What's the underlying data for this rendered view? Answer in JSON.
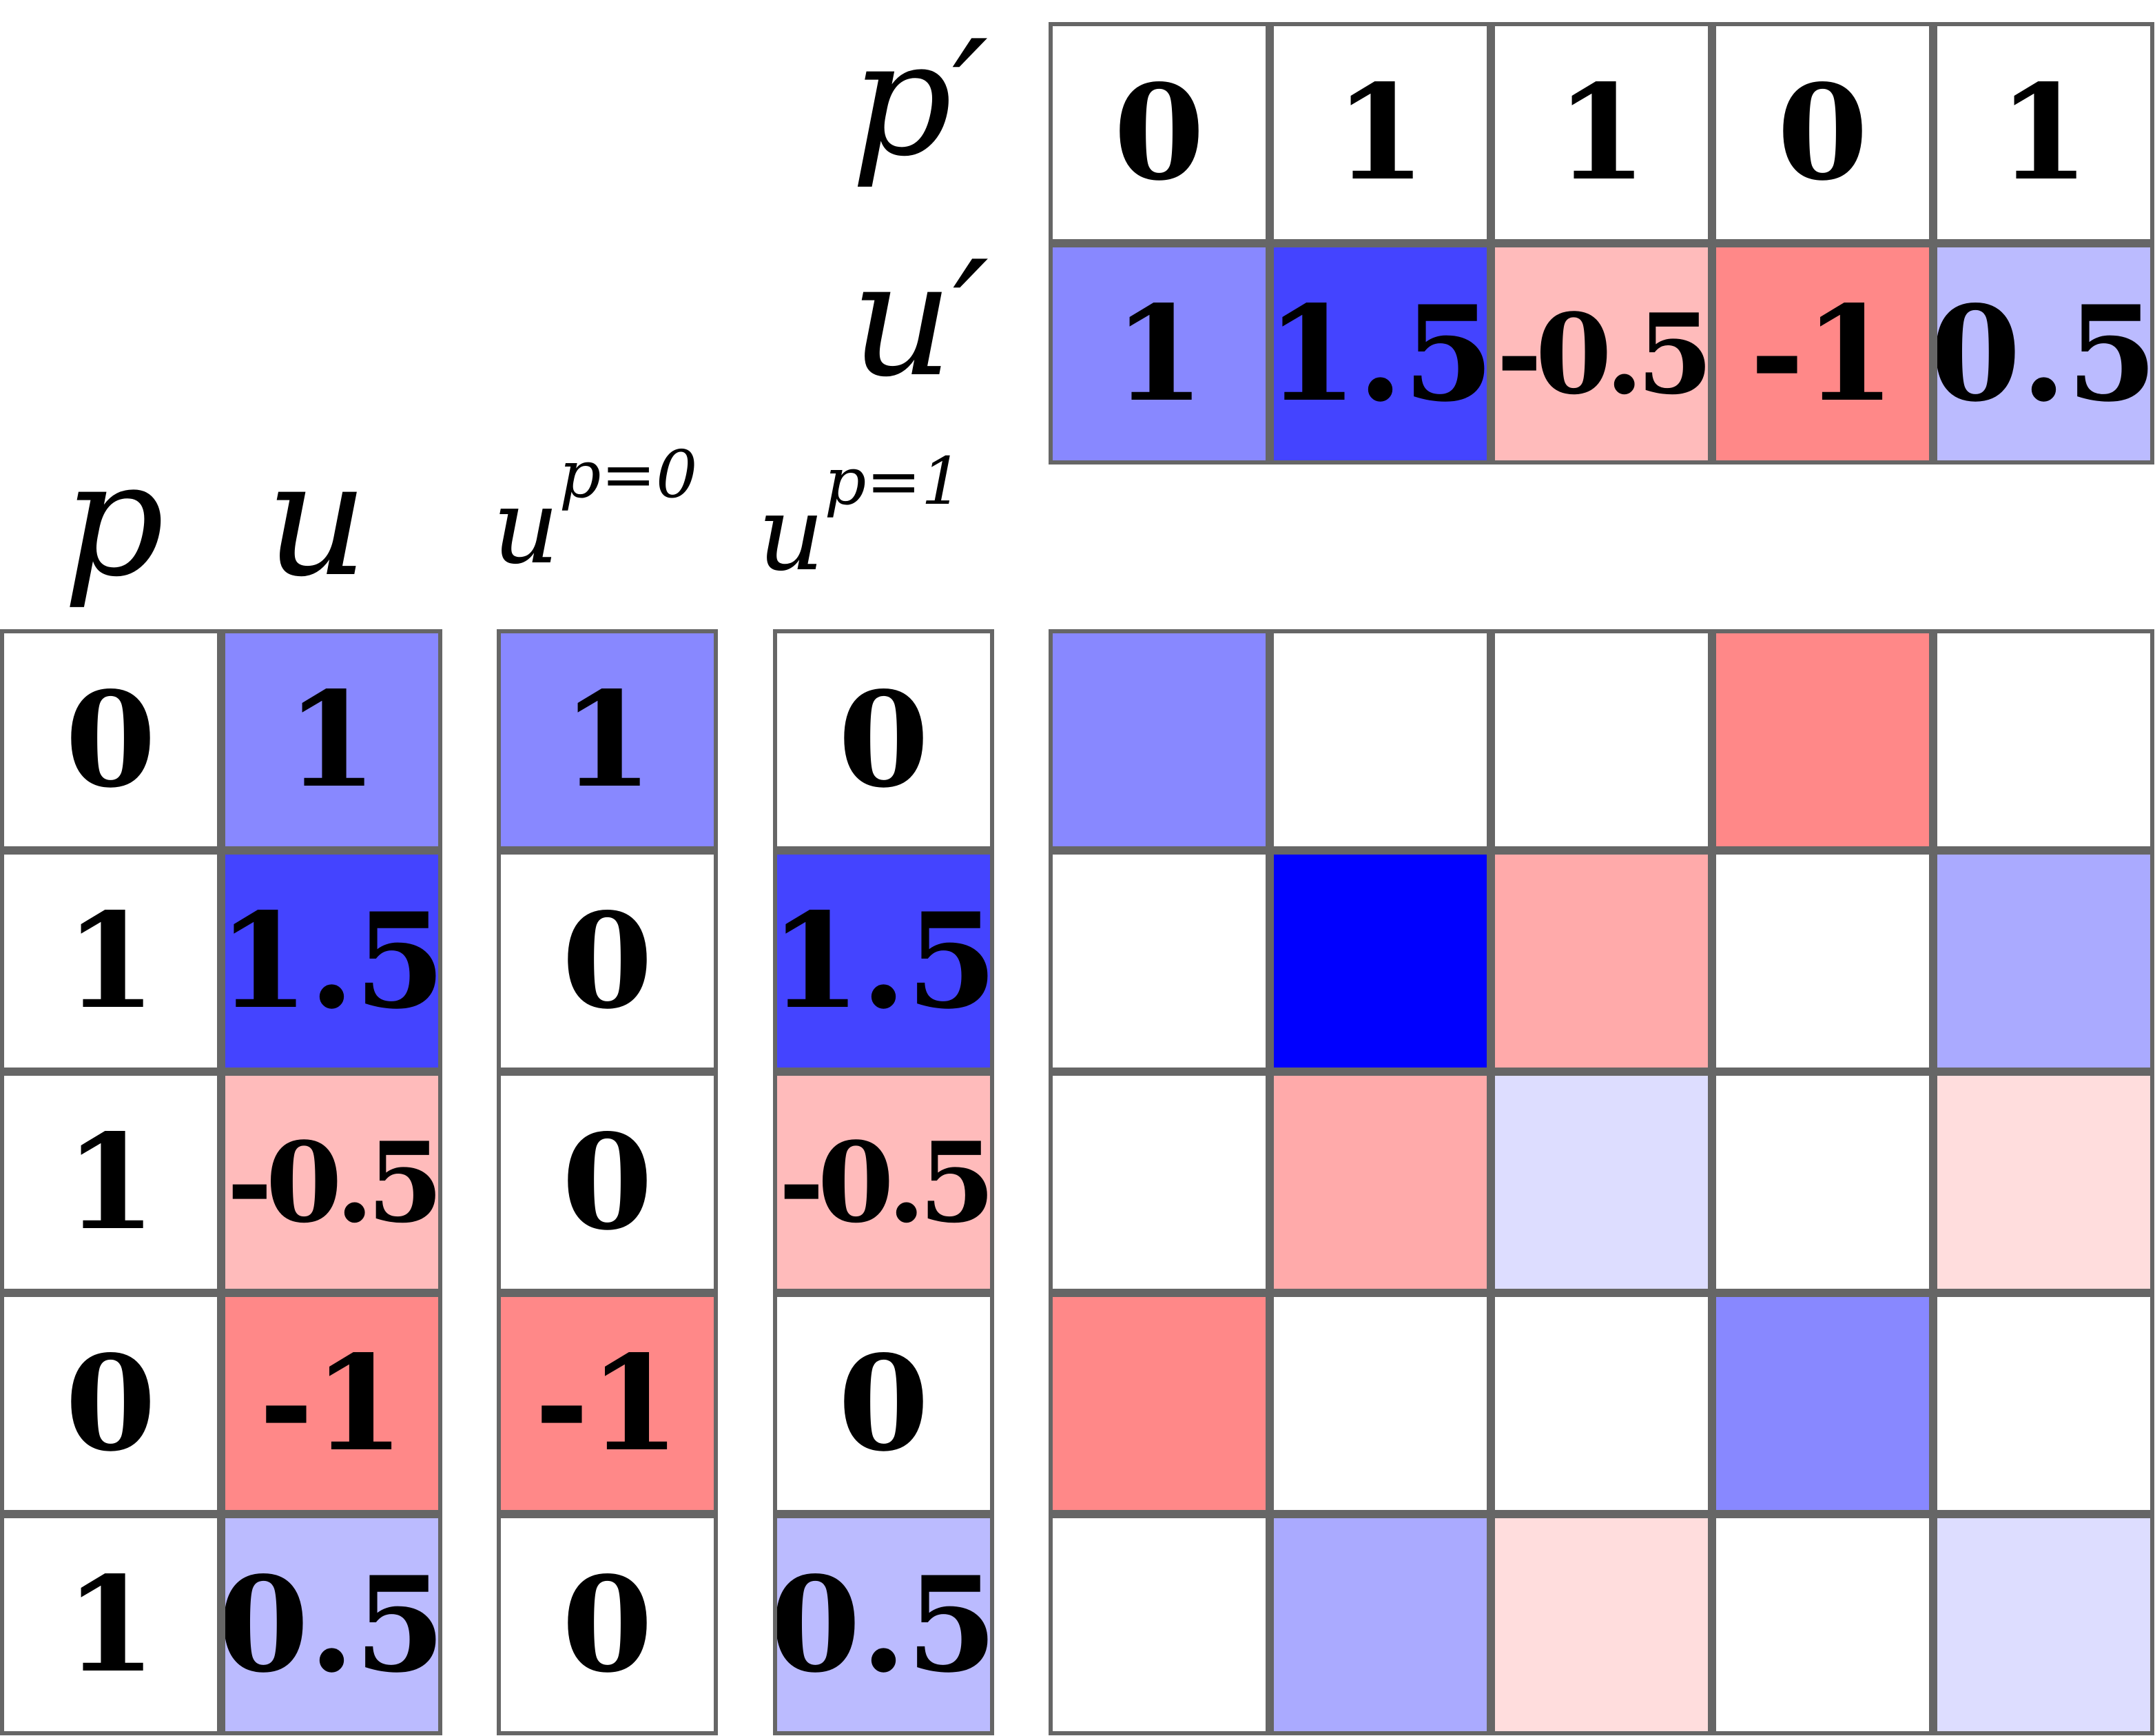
{
  "labels": {
    "p_prime": "p′",
    "u_prime": "u′",
    "p": "p",
    "u": "u",
    "u_p0_base": "u",
    "u_p0_sup": "p=0",
    "u_p1_base": "u",
    "u_p1_sup": "p=1"
  },
  "colors": {
    "grid_border": "#666666",
    "u_1": "#8888ff",
    "u_1_5": "#4444ff",
    "u_neg0_5": "#ffbbbb",
    "u_neg1": "#ff8888",
    "u_0_5": "#bbbbff",
    "white": "#ffffff"
  },
  "top_table": {
    "p_prime": [
      "0",
      "1",
      "1",
      "0",
      "1"
    ],
    "u_prime": [
      "1",
      "1.5",
      "-0.5",
      "-1",
      "0.5"
    ]
  },
  "left_table": {
    "p": [
      "0",
      "1",
      "1",
      "0",
      "1"
    ],
    "u": [
      "1",
      "1.5",
      "-0.5",
      "-1",
      "0.5"
    ],
    "u_p0": [
      "1",
      "0",
      "0",
      "-1",
      "0"
    ],
    "u_p1": [
      "0",
      "1.5",
      "-0.5",
      "0",
      "0.5"
    ]
  },
  "matrix": {
    "values": [
      [
        1,
        0,
        0,
        -1,
        0
      ],
      [
        0,
        2.25,
        -0.75,
        0,
        0.75
      ],
      [
        0,
        -0.75,
        0.25,
        0,
        -0.25
      ],
      [
        -1,
        0,
        0,
        1,
        0
      ],
      [
        0,
        0.75,
        -0.25,
        0,
        0.25
      ]
    ],
    "colors": [
      [
        "#8888ff",
        "#ffffff",
        "#ffffff",
        "#ff8888",
        "#ffffff"
      ],
      [
        "#ffffff",
        "#0000ff",
        "#ffaaaa",
        "#ffffff",
        "#aaaaff"
      ],
      [
        "#ffffff",
        "#ffaaaa",
        "#ddddff",
        "#ffffff",
        "#ffdddd"
      ],
      [
        "#ff8888",
        "#ffffff",
        "#ffffff",
        "#8888ff",
        "#ffffff"
      ],
      [
        "#ffffff",
        "#aaaaff",
        "#ffdddd",
        "#ffffff",
        "#ddddff"
      ]
    ]
  }
}
